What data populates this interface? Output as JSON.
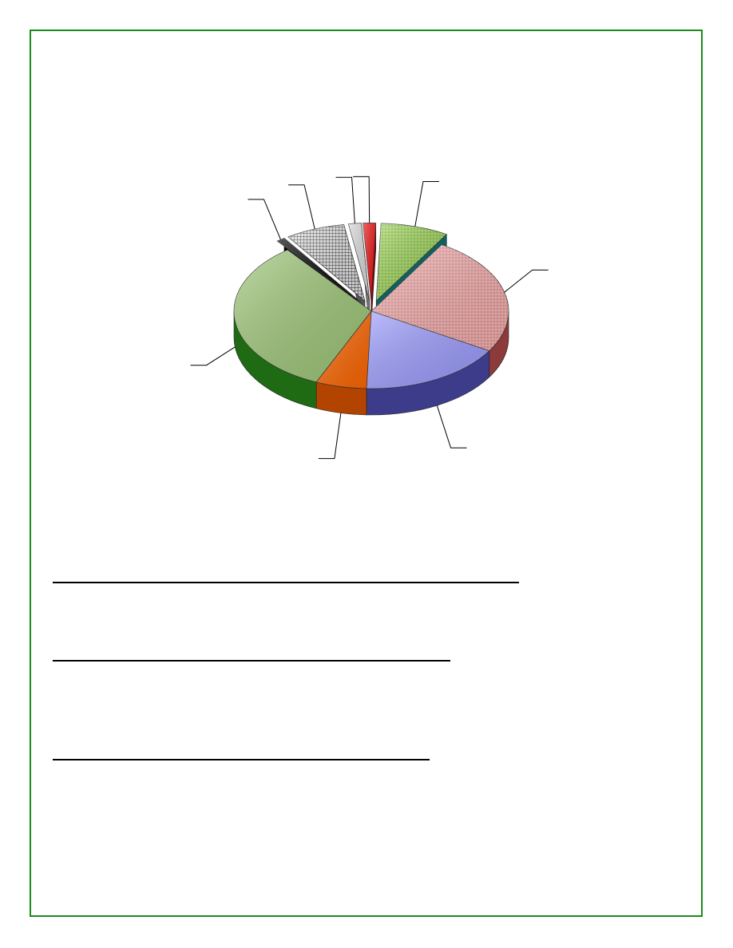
{
  "page": {
    "border_color": "#1a8c1a",
    "answer_lines": 3
  },
  "chart_data": {
    "type": "pie",
    "style": "exploded 3d",
    "title": "",
    "labels_shown": false,
    "slices": [
      {
        "value": 8.0,
        "color": "#8fd24a",
        "side_color": "#116060",
        "pattern": "dots",
        "exploded": true
      },
      {
        "value": 25.0,
        "color": "#f2a9a9",
        "side_color": "#8c3a3a",
        "pattern": "dots",
        "exploded": false
      },
      {
        "value": 17.0,
        "color": "#9c9cff",
        "side_color": "#3c3c8a",
        "pattern": "none",
        "exploded": false
      },
      {
        "value": 6.0,
        "color": "#ff6600",
        "side_color": "#b34400",
        "pattern": "none",
        "exploded": false
      },
      {
        "value": 33.0,
        "color": "#9fc878",
        "side_color": "#1e6b14",
        "pattern": "none",
        "exploded": false
      },
      {
        "value": 1.0,
        "color": "#000000",
        "side_color": "#000000",
        "pattern": "none",
        "exploded": true
      },
      {
        "value": 7.0,
        "color": "#e6e6e6",
        "side_color": "#555555",
        "pattern": "grid",
        "exploded": true
      },
      {
        "value": 1.5,
        "color": "#d9d9d9",
        "side_color": "#777777",
        "pattern": "none",
        "exploded": true
      },
      {
        "value": 1.5,
        "color": "#ee1111",
        "side_color": "#880000",
        "pattern": "none",
        "exploded": true
      }
    ]
  }
}
